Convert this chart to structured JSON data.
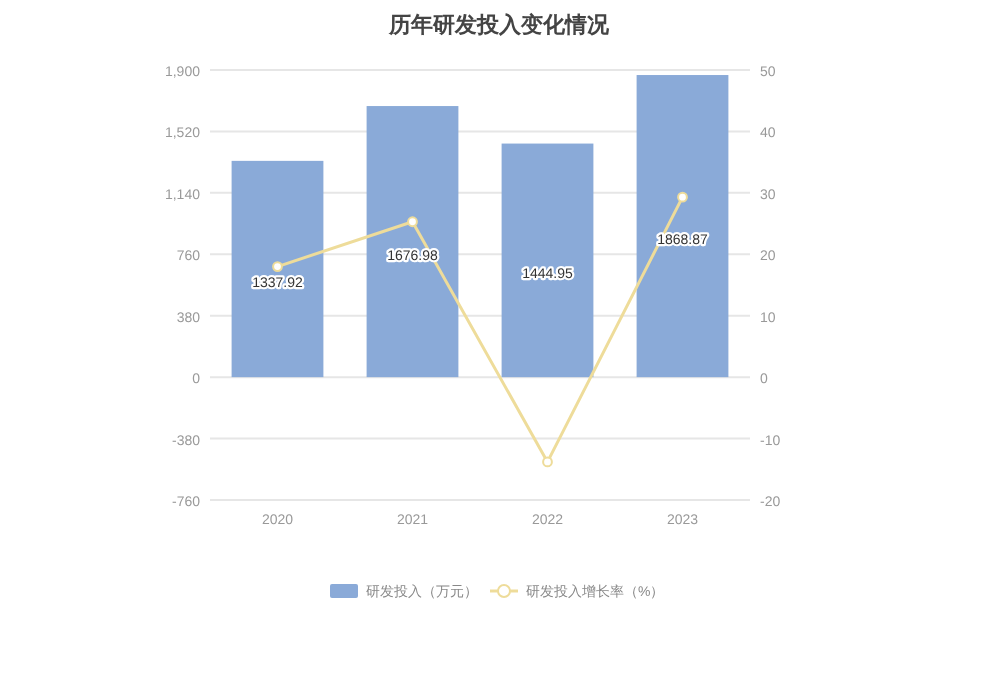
{
  "chart_data": {
    "type": "bar",
    "title": "历年研发投入变化情况",
    "categories": [
      "2020",
      "2021",
      "2022",
      "2023"
    ],
    "series": [
      {
        "name": "研发投入（万元）",
        "color": "#8aaad8",
        "values": [
          1337.92,
          1676.98,
          1444.95,
          1868.87
        ],
        "data_labels": true
      },
      {
        "name": "研发投入增长率（%）",
        "type": "line",
        "axis": "y2",
        "color": "#eedc9a",
        "marker": "circle",
        "values": [
          18,
          25.3,
          -13.8,
          29.3
        ]
      }
    ],
    "ylim": [
      -760,
      1900
    ],
    "yticks": [
      {
        "value": 1900,
        "label": "1,900"
      },
      {
        "value": 1520,
        "label": "1,520"
      },
      {
        "value": 1140,
        "label": "1,140"
      },
      760,
      380,
      0,
      -380,
      -760
    ],
    "y2lim": [
      -20,
      50
    ],
    "y2ticks": [
      50,
      40,
      30,
      20,
      10,
      0,
      -10,
      -20
    ],
    "grid": "y",
    "legend": "bottom"
  }
}
